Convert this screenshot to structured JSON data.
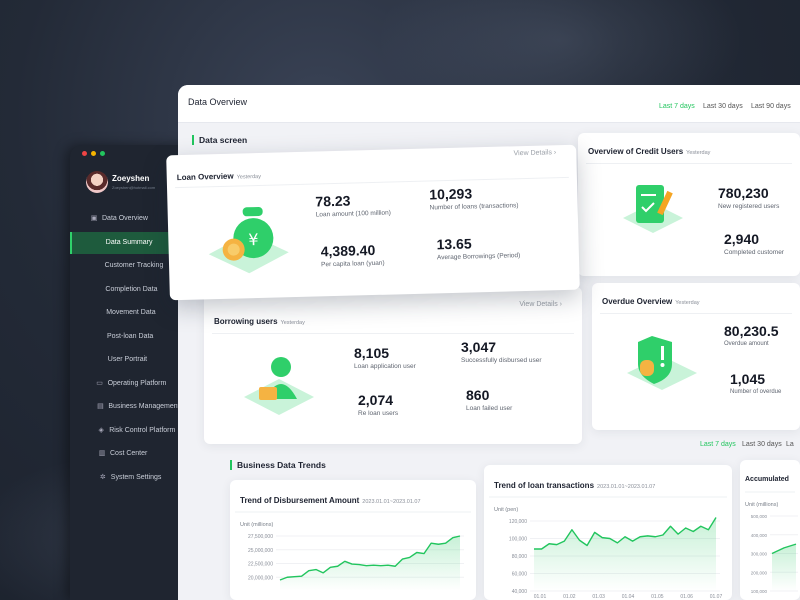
{
  "sidebar": {
    "user": {
      "name": "Zoeyshen",
      "email": "Zoeyshen@hotmail.com"
    },
    "items": [
      {
        "label": "Data Overview",
        "icon": "image-icon"
      },
      {
        "label": "Data Summary",
        "active": true
      },
      {
        "label": "Customer Tracking"
      },
      {
        "label": "Completion Data"
      },
      {
        "label": "Movement Data"
      },
      {
        "label": "Post-loan Data"
      },
      {
        "label": "User Portrait"
      },
      {
        "label": "Operating Platform",
        "icon": "monitor-icon"
      },
      {
        "label": "Business Management",
        "icon": "briefcase-icon"
      },
      {
        "label": "Risk Control Platform",
        "icon": "shield-icon"
      },
      {
        "label": "Cost Center",
        "icon": "document-icon"
      },
      {
        "label": "System Settings",
        "icon": "gear-icon"
      }
    ]
  },
  "header": {
    "title": "Data Overview",
    "ranges": [
      "Last 7 days",
      "Last 30 days",
      "Last 90 days"
    ],
    "active_range": "Last 7 days"
  },
  "data_screen": {
    "title": "Data screen",
    "loan_overview": {
      "title": "Loan Overview",
      "sub": "Yesterday",
      "link": "View Details ›",
      "stats": [
        {
          "value": "78.23",
          "label": "Loan amount (100 million)"
        },
        {
          "value": "10,293",
          "label": "Number of loans (transactions)"
        },
        {
          "value": "4,389.40",
          "label": "Per capita loan (yuan)"
        },
        {
          "value": "13.65",
          "label": "Average Borrowings (Period)"
        }
      ]
    },
    "credit_users": {
      "title": "Overview of Credit Users",
      "sub": "Yesterday",
      "stats": [
        {
          "value": "780,230",
          "label": "New registered users"
        },
        {
          "value": "2,940",
          "label": "Completed customer"
        }
      ]
    },
    "borrowing_users": {
      "title": "Borrowing users",
      "sub": "Yesterday",
      "link": "View Details ›",
      "stats": [
        {
          "value": "8,105",
          "label": "Loan application user"
        },
        {
          "value": "3,047",
          "label": "Successfully disbursed user"
        },
        {
          "value": "2,074",
          "label": "Re loan users"
        },
        {
          "value": "860",
          "label": "Loan failed user"
        }
      ]
    },
    "overdue": {
      "title": "Overdue Overview",
      "sub": "Yesterday",
      "stats": [
        {
          "value": "80,230.5",
          "label": "Overdue amount"
        },
        {
          "value": "1,045",
          "label": "Number of overdue"
        }
      ]
    }
  },
  "trends": {
    "title": "Business Data Trends",
    "ranges": [
      "Last 7 days",
      "Last 30 days",
      "La"
    ],
    "active_range": "Last 7 days"
  },
  "accent": "#22c55e",
  "chart_data": [
    {
      "type": "area",
      "title": "Trend of Disbursement Amount",
      "subtitle": "2023.01.01~2023.01.07",
      "ylabel": "Unit (millions)",
      "yticks": [
        "27,500,000",
        "25,000,000",
        "22,500,000",
        "20,000,000"
      ],
      "ylim": [
        17500000,
        27500000
      ],
      "values": [
        19500000,
        20000000,
        20100000,
        20200000,
        21200000,
        21400000,
        20800000,
        21800000,
        22000000,
        22900000,
        22400000,
        22300000,
        22100000,
        22200000,
        22100000,
        22200000,
        22000000,
        23300000,
        23600000,
        24500000,
        24300000,
        26200000,
        26000000,
        26200000,
        27200000,
        27500000
      ]
    },
    {
      "type": "area",
      "title": "Trend of loan transactions",
      "subtitle": "2023.01.01~2023.01.07",
      "ylabel": "Unit (pen)",
      "yticks": [
        "120,000",
        "100,000",
        "80,000",
        "60,000",
        "40,000"
      ],
      "ylim": [
        40000,
        120000
      ],
      "xticks": [
        "01.01",
        "01.02",
        "01.03",
        "01.04",
        "01.05",
        "01.06",
        "01.07"
      ],
      "values": [
        88000,
        88000,
        94000,
        93000,
        97000,
        110000,
        98000,
        92000,
        107000,
        101000,
        100000,
        95000,
        102000,
        97000,
        102000,
        103000,
        102000,
        104000,
        114000,
        105000,
        112000,
        108000,
        114000,
        110000,
        124000
      ]
    },
    {
      "type": "area",
      "title": "Accumulated",
      "ylabel": "Unit (millions)",
      "yticks": [
        "500,000",
        "400,000",
        "300,000",
        "200,000",
        "100,000"
      ],
      "ylim": [
        100000,
        500000
      ],
      "values": [
        300000,
        330000,
        350000
      ]
    }
  ]
}
